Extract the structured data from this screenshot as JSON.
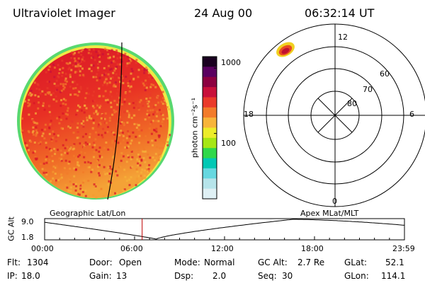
{
  "header": {
    "title": "Ultraviolet Imager",
    "date": "24 Aug 00",
    "time": "06:32:14 UT"
  },
  "colorbar": {
    "unit_label": "photon cm⁻²s⁻¹",
    "ticks": [
      {
        "value": 1000,
        "label": "1000"
      },
      {
        "value": 100,
        "label": "100"
      }
    ],
    "colors": [
      "#dff0f4",
      "#b6e4ea",
      "#66d8e0",
      "#00c8b4",
      "#2fd84a",
      "#a6e614",
      "#ecec2a",
      "#f7b43a",
      "#f27b2a",
      "#ea3a2a",
      "#c8103a",
      "#8c0040",
      "#5a0060",
      "#1a0020"
    ]
  },
  "polar_plot": {
    "mlt_labels": {
      "top": "12",
      "left": "18",
      "right": "6",
      "bottom": "0"
    },
    "lat_labels": [
      "60",
      "70",
      "80"
    ]
  },
  "timeline": {
    "left_label": "Geographic Lat/Lon",
    "right_label": "Apex MLat/MLT",
    "ylabel": "GC Alt",
    "ymax_label": "9.0",
    "ymin_label": "1.8",
    "time_ticks": [
      "00:00",
      "06:00",
      "12:00",
      "18:00",
      "23:59"
    ],
    "current_time_fraction": 0.271
  },
  "footer": {
    "flt_label": "Flt:",
    "flt_value": "1304",
    "ip_label": "IP:",
    "ip_value": "18.0",
    "door_label": "Door:",
    "door_value": "Open",
    "gain_label": "Gain:",
    "gain_value": "13",
    "mode_label": "Mode:",
    "mode_value": "Normal",
    "dsp_label": "Dsp:",
    "dsp_value": "2.0",
    "gcalt_label": "GC Alt:",
    "gcalt_value": "2.7 Re",
    "seq_label": "Seq:",
    "seq_value": "30",
    "glat_label": "GLat:",
    "glat_value": "52.1",
    "glon_label": "GLon:",
    "glon_value": "114.1"
  }
}
